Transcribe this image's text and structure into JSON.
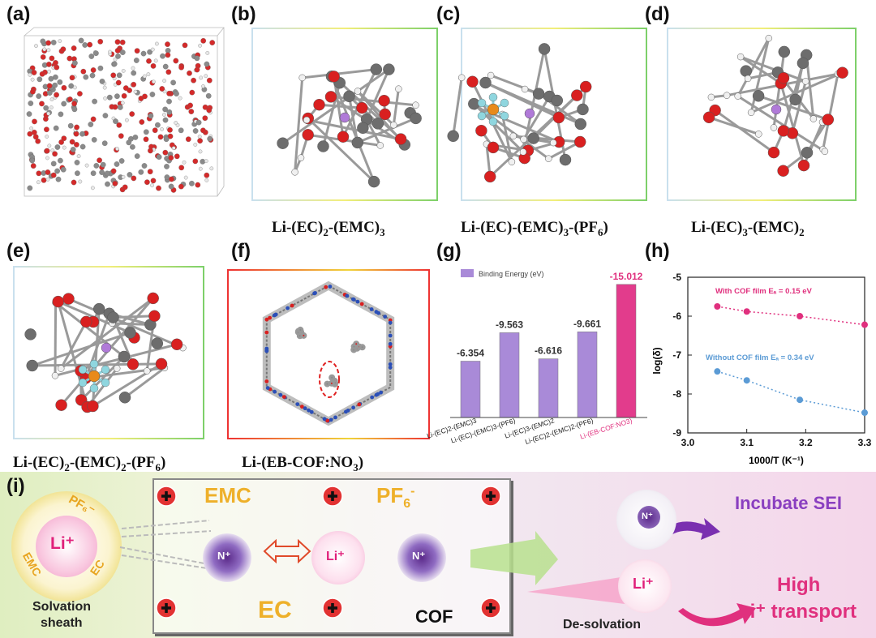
{
  "panels": {
    "a": "(a)",
    "b": "(b)",
    "c": "(c)",
    "d": "(d)",
    "e": "(e)",
    "f": "(f)",
    "g": "(g)",
    "h": "(h)",
    "i": "(i)"
  },
  "captions": {
    "b": {
      "base": "Li-(EC)",
      "s1": "2",
      "mid": "-(EMC)",
      "s2": "3"
    },
    "c": {
      "base": "Li-(EC)-(EMC)",
      "s1": "3",
      "mid": "-(PF",
      "s2": "6",
      "tail": ")"
    },
    "d": {
      "base": "Li-(EC)",
      "s1": "3",
      "mid": "-(EMC)",
      "s2": "2"
    },
    "e": {
      "base": "Li-(EC)",
      "s1": "2",
      "mid": "-(EMC)",
      "s2": "2",
      "mid2": "-(PF",
      "s3": "6",
      "tail": ")"
    },
    "f": {
      "base": "Li-(EB-COF:NO",
      "s1": "3",
      "tail": ")"
    }
  },
  "chart_data": [
    {
      "type": "bar",
      "legend": "Binding Energy  (eV)",
      "categories": [
        "Li-(EC)2-(EMC)3",
        "Li-(EC)-(EMC)3-(PF6)",
        "Li-(EC)3-(EMC)2",
        "Li-(EC)2-(EMC)2-(PF6)",
        "Li-(EB-COF:NO3)"
      ],
      "values": [
        -6.354,
        -9.563,
        -6.616,
        -9.661,
        -15.012
      ],
      "value_labels": [
        "-6.354",
        "-9.563",
        "-6.616",
        "-9.661",
        "-15.012"
      ],
      "colors": [
        "#a98ad8",
        "#a98ad8",
        "#a98ad8",
        "#a98ad8",
        "#e23c8c"
      ]
    },
    {
      "type": "scatter",
      "xlabel": "1000/T (K⁻¹)",
      "ylabel": "log(δ)",
      "xlim": [
        3.0,
        3.3
      ],
      "ylim": [
        -9,
        -5
      ],
      "xticks": [
        "3.0",
        "3.1",
        "3.2",
        "3.3"
      ],
      "yticks": [
        "-5",
        "-6",
        "-7",
        "-8",
        "-9"
      ],
      "series": [
        {
          "name": "With COF film  Eₐ = 0.15 eV",
          "x": [
            3.05,
            3.1,
            3.19,
            3.3
          ],
          "y": [
            -5.75,
            -5.88,
            -6.0,
            -6.22
          ],
          "color": "#e0307e"
        },
        {
          "name": "Without COF film  Eₐ = 0.34 eV",
          "x": [
            3.05,
            3.1,
            3.19,
            3.3
          ],
          "y": [
            -7.42,
            -7.65,
            -8.15,
            -8.48
          ],
          "color": "#5b9bd5"
        }
      ]
    }
  ],
  "scheme": {
    "solvation": {
      "pf6": "PF₆⁻",
      "li": "Li⁺",
      "emc": "EMC",
      "ec": "EC",
      "caption1": "Solvation",
      "caption2": "sheath"
    },
    "box": {
      "emc": "EMC",
      "pf6": "PF",
      "pf6_sub": "6",
      "pf6_sup": "-",
      "ec": "EC",
      "cof": "COF",
      "li": "Li⁺",
      "n": "N⁺"
    },
    "right": {
      "incubate": "Incubate SEI",
      "high": "High",
      "li_transport": "Li⁺ transport",
      "desolvation": "De-solvation",
      "li": "Li⁺",
      "n": "N⁺"
    }
  }
}
